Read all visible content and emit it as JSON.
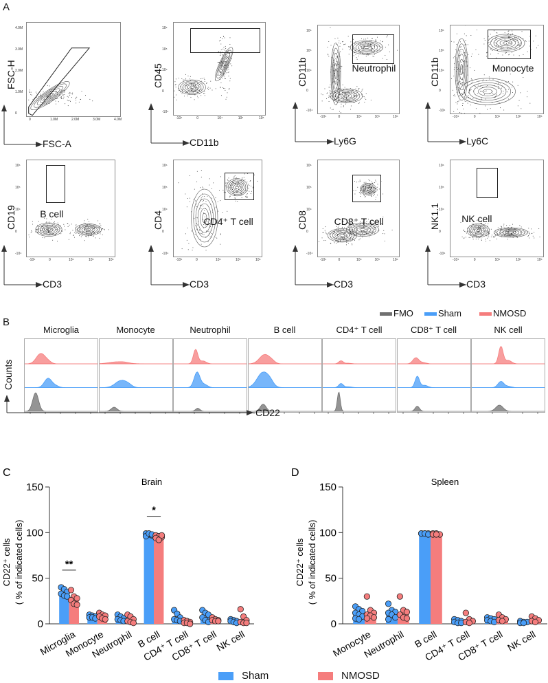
{
  "colors": {
    "sham": "#4a9ef8",
    "nmosd": "#f57d7d",
    "fmo": "#707070",
    "axis": "#333333"
  },
  "panel_a": {
    "letter": "A",
    "log_ticks": [
      "-10⁴",
      "0",
      "10⁴",
      "10⁵",
      "10⁶"
    ],
    "linear_ticks": [
      "0",
      "1.0M",
      "2.0M",
      "3.0M",
      "4.0M"
    ],
    "plots": [
      {
        "ylabel": "FSC-H",
        "xlabel": "FSC-A",
        "gate": ""
      },
      {
        "ylabel": "CD45",
        "xlabel": "CD11b",
        "gate": ""
      },
      {
        "ylabel": "CD11b",
        "xlabel": "Ly6G",
        "gate": "Neutrophil"
      },
      {
        "ylabel": "CD11b",
        "xlabel": "Ly6C",
        "gate": "Monocyte"
      },
      {
        "ylabel": "CD19",
        "xlabel": "CD3",
        "gate": "B cell"
      },
      {
        "ylabel": "CD4",
        "xlabel": "CD3",
        "gate": "CD4⁺ T cell"
      },
      {
        "ylabel": "CD8",
        "xlabel": "CD3",
        "gate": "CD8⁺ T cell"
      },
      {
        "ylabel": "NK1.1",
        "xlabel": "CD3",
        "gate": "NK cell"
      }
    ]
  },
  "panel_b": {
    "letter": "B",
    "legend": [
      "FMO",
      "Sham",
      "NMOSD"
    ],
    "populations": [
      "Microglia",
      "Monocyte",
      "Neutrophil",
      "B cell",
      "CD4⁺ T cell",
      "CD8⁺ T cell",
      "NK cell"
    ],
    "ylabel": "Counts",
    "xlabel": "CD22"
  },
  "legend": {
    "sham": "Sham",
    "nmosd": "NMOSD"
  },
  "chart_data": [
    {
      "letter": "C",
      "type": "bar",
      "title": "Brain",
      "ylabel": "CD22⁺ cells",
      "ylabel2": "( % of indicated cells)",
      "ylim": [
        0,
        150
      ],
      "yticks": [
        "0",
        "50",
        "100",
        "150"
      ],
      "categories": [
        "Microglia",
        "Monocyte",
        "Neutrophil",
        "B cell",
        "CD4⁺ T cell",
        "CD8⁺ T cell",
        "NK cell"
      ],
      "significance": [
        "**",
        "",
        "",
        "*",
        "",
        "",
        ""
      ],
      "series": [
        {
          "name": "Sham",
          "values": [
            36,
            8,
            6,
            98,
            6,
            8,
            3
          ],
          "points": [
            [
              40,
              38,
              35,
              33,
              31,
              30
            ],
            [
              10,
              9,
              8,
              7,
              7,
              6
            ],
            [
              10,
              8,
              6,
              5,
              4,
              3
            ],
            [
              99,
              98,
              97,
              96,
              99,
              98
            ],
            [
              15,
              11,
              7,
              5,
              4,
              3
            ],
            [
              15,
              12,
              10,
              7,
              4,
              2
            ],
            [
              5,
              4,
              3,
              3,
              2,
              1
            ]
          ]
        },
        {
          "name": "NMOSD",
          "values": [
            27,
            8,
            5,
            96,
            2,
            5,
            5
          ],
          "points": [
            [
              37,
              30,
              28,
              26,
              22,
              21
            ],
            [
              12,
              10,
              9,
              8,
              6,
              5
            ],
            [
              10,
              8,
              5,
              3,
              2,
              1
            ],
            [
              97,
              96,
              95,
              94,
              92,
              97
            ],
            [
              4,
              3,
              2,
              1,
              1,
              0
            ],
            [
              7,
              5,
              4,
              4,
              3,
              3
            ],
            [
              16,
              8,
              4,
              2,
              1,
              1
            ]
          ]
        }
      ]
    },
    {
      "letter": "D",
      "type": "bar",
      "title": "Spleen",
      "ylabel": "CD22⁺ cells",
      "ylabel2": "( % of indicated cells)",
      "ylim": [
        0,
        150
      ],
      "yticks": [
        "0",
        "50",
        "100",
        "150"
      ],
      "categories": [
        "Monocyte",
        "Neutrophil",
        "B cell",
        "CD4⁺ T cell",
        "CD8⁺ T cell",
        "NK cell"
      ],
      "significance": [
        "",
        "",
        "",
        "",
        "",
        ""
      ],
      "series": [
        {
          "name": "Sham",
          "values": [
            12,
            13,
            99,
            3,
            4,
            2
          ],
          "points": [
            [
              19,
              16,
              14,
              12,
              10,
              8,
              6,
              5
            ],
            [
              22,
              15,
              13,
              12,
              10,
              7,
              5
            ],
            [
              99,
              99,
              99,
              99,
              99,
              98
            ],
            [
              5,
              4,
              3,
              2,
              1,
              1
            ],
            [
              7,
              6,
              5,
              4,
              3,
              2
            ],
            [
              3,
              2,
              2,
              1,
              1
            ]
          ]
        },
        {
          "name": "NMOSD",
          "values": [
            13,
            13,
            99,
            5,
            5,
            4
          ],
          "points": [
            [
              30,
              15,
              12,
              10,
              9,
              7,
              6
            ],
            [
              30,
              15,
              13,
              10,
              7,
              6
            ],
            [
              99,
              99,
              98,
              98,
              98
            ],
            [
              12,
              5,
              3,
              2,
              1
            ],
            [
              10,
              7,
              5,
              4,
              3
            ],
            [
              8,
              6,
              4,
              3,
              2
            ]
          ]
        }
      ]
    }
  ]
}
